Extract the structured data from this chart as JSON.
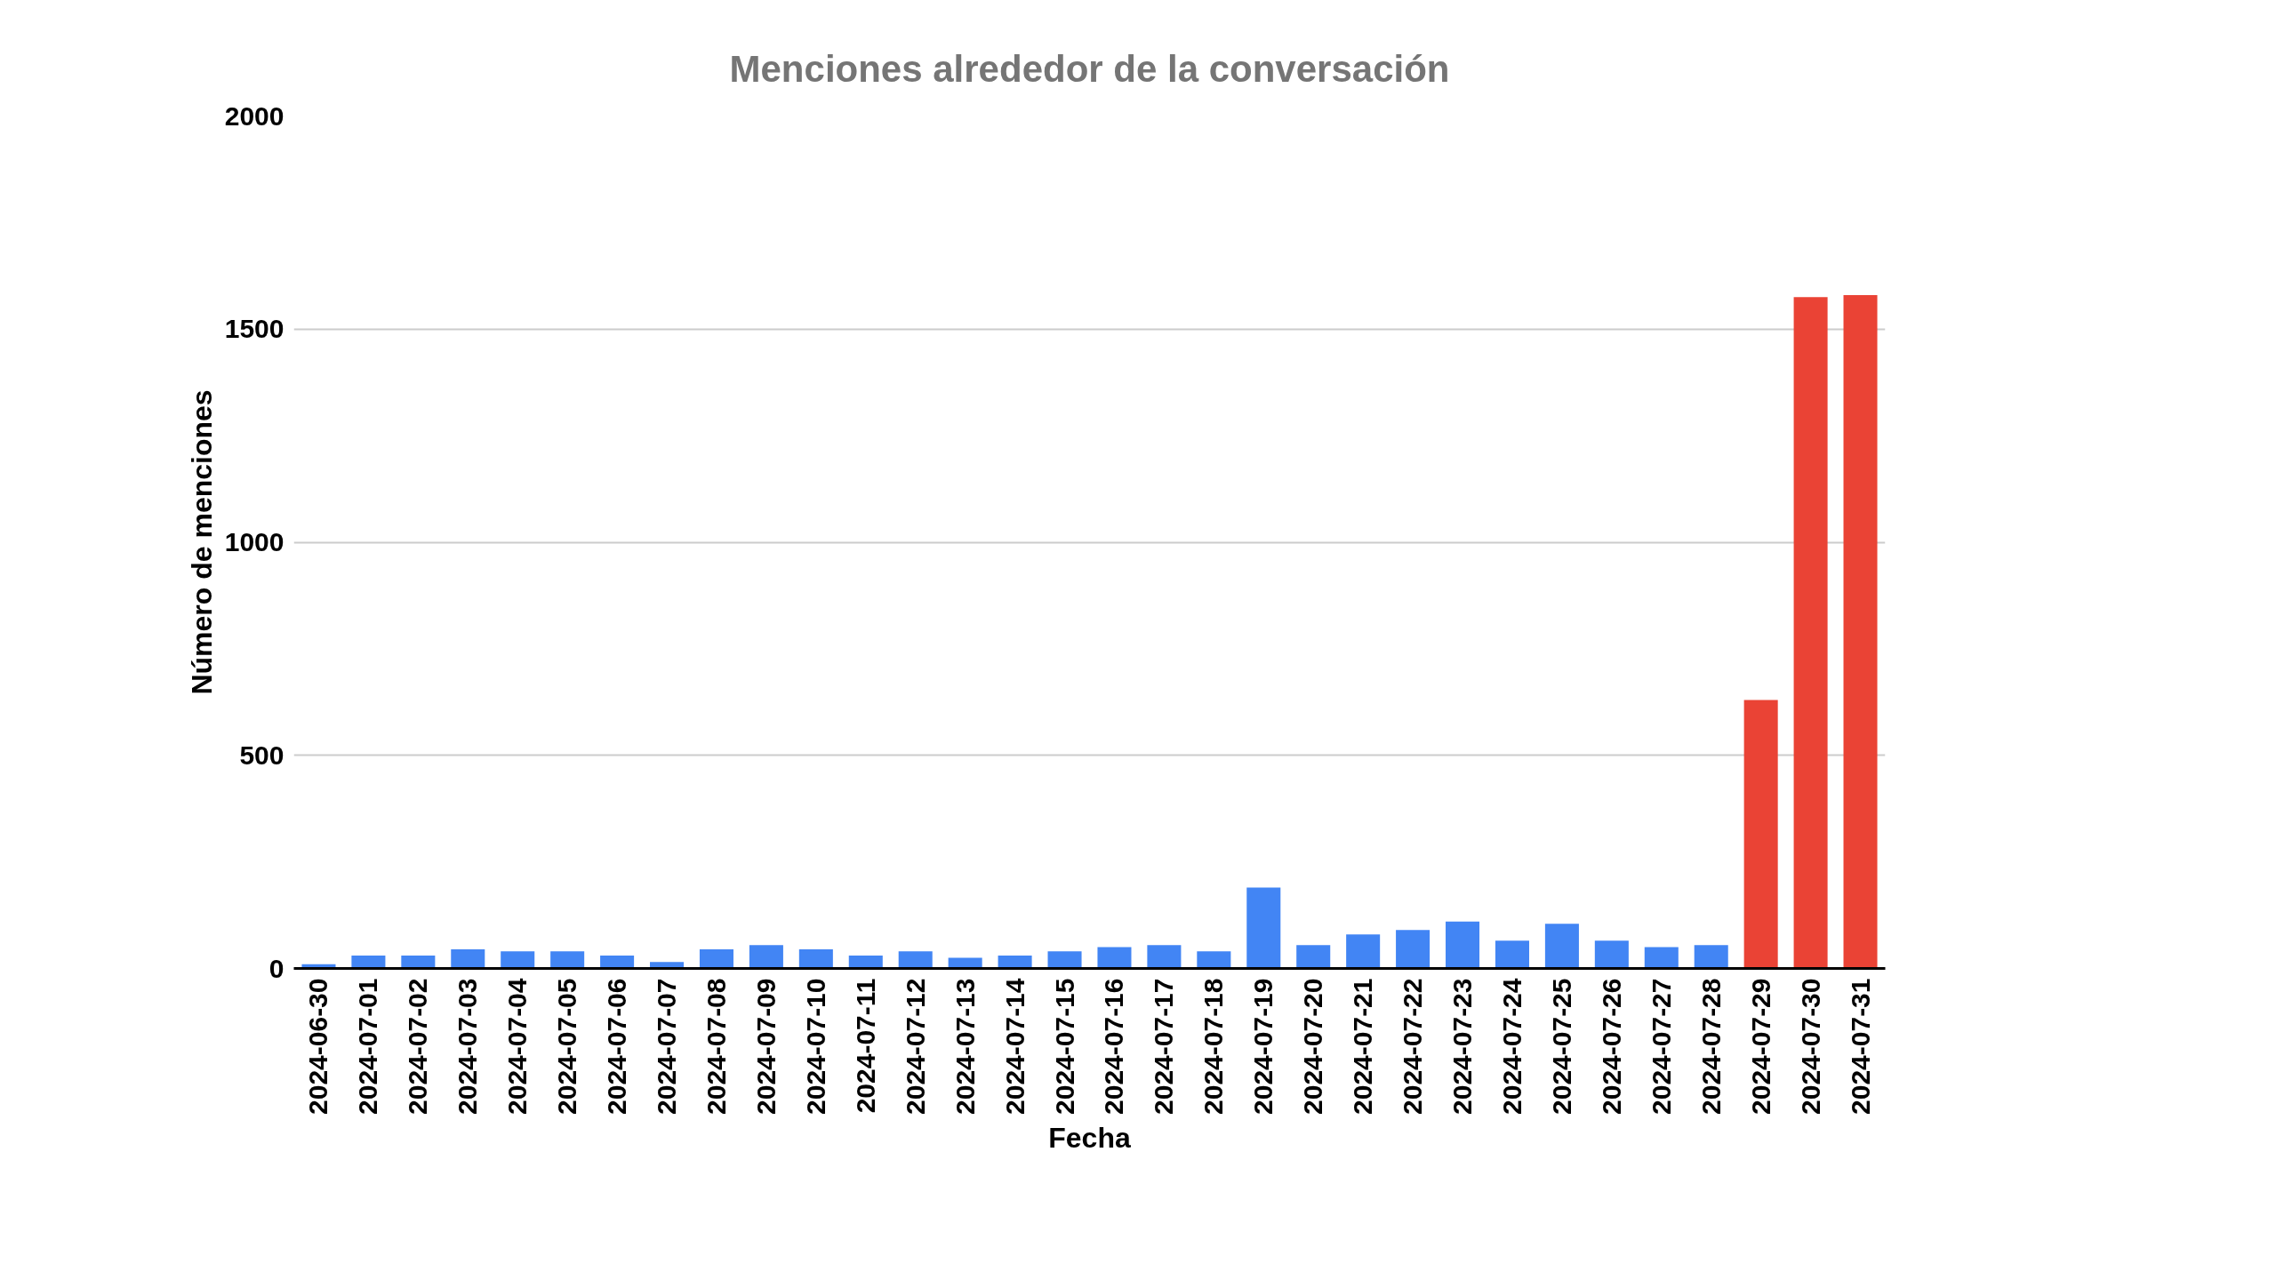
{
  "chart_data": {
    "type": "bar",
    "title": "Menciones alrededor de la conversación",
    "xlabel": "Fecha",
    "ylabel": "Número de menciones",
    "categories": [
      "2024-06-30",
      "2024-07-01",
      "2024-07-02",
      "2024-07-03",
      "2024-07-04",
      "2024-07-05",
      "2024-07-06",
      "2024-07-07",
      "2024-07-08",
      "2024-07-09",
      "2024-07-10",
      "2024-07-11",
      "2024-07-12",
      "2024-07-13",
      "2024-07-14",
      "2024-07-15",
      "2024-07-16",
      "2024-07-17",
      "2024-07-18",
      "2024-07-19",
      "2024-07-20",
      "2024-07-21",
      "2024-07-22",
      "2024-07-23",
      "2024-07-24",
      "2024-07-25",
      "2024-07-26",
      "2024-07-27",
      "2024-07-28",
      "2024-07-29",
      "2024-07-30",
      "2024-07-31"
    ],
    "values": [
      10,
      30,
      30,
      45,
      40,
      40,
      30,
      15,
      45,
      55,
      45,
      30,
      40,
      25,
      30,
      40,
      50,
      55,
      40,
      190,
      55,
      80,
      90,
      110,
      65,
      105,
      65,
      50,
      55,
      630,
      1575,
      1580
    ],
    "colors": [
      "#4285f4",
      "#4285f4",
      "#4285f4",
      "#4285f4",
      "#4285f4",
      "#4285f4",
      "#4285f4",
      "#4285f4",
      "#4285f4",
      "#4285f4",
      "#4285f4",
      "#4285f4",
      "#4285f4",
      "#4285f4",
      "#4285f4",
      "#4285f4",
      "#4285f4",
      "#4285f4",
      "#4285f4",
      "#4285f4",
      "#4285f4",
      "#4285f4",
      "#4285f4",
      "#4285f4",
      "#4285f4",
      "#4285f4",
      "#4285f4",
      "#4285f4",
      "#4285f4",
      "#ea4335",
      "#ea4335",
      "#ea4335"
    ],
    "ylim": [
      0,
      2000
    ],
    "yticks": [
      0,
      500,
      1000,
      1500,
      2000
    ],
    "grid": "y"
  }
}
